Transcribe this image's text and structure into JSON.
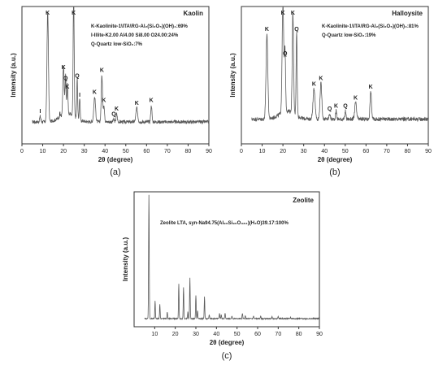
{
  "colors": {
    "trace": "#5a5a5a",
    "axis": "#333333"
  },
  "chart_data": [
    {
      "id": "a",
      "type": "line",
      "panel_label": "(a)",
      "title": "Kaolin",
      "xlabel": "2θ (degree)",
      "ylabel": "Intensity (a.u.)",
      "xlim": [
        0,
        90
      ],
      "xticks": [
        0,
        10,
        20,
        30,
        40,
        50,
        60,
        70,
        80,
        90
      ],
      "legend": [
        {
          "text": "K-Kaolinite-1\\ITA\\RG-Al₂(Si₂O₅)(OH)₄:69%"
        },
        {
          "text": "I-Illite-K2.00 Al4.00 Si8.00 O24.00:24%"
        },
        {
          "text": "Q-Quartz low-SiO₂:7%"
        }
      ],
      "baseline": 0.16,
      "noise": 0.012,
      "peaks": [
        [
          8.8,
          0.04,
          0.4,
          "I"
        ],
        [
          12.4,
          0.8,
          0.5,
          "K"
        ],
        [
          18.3,
          0.02,
          0.4,
          "I"
        ],
        [
          20.0,
          0.36,
          0.45,
          "K"
        ],
        [
          21.0,
          0.28,
          0.35,
          "Q"
        ],
        [
          21.9,
          0.22,
          0.35,
          "K"
        ],
        [
          24.9,
          0.92,
          0.35,
          "K"
        ],
        [
          26.6,
          0.3,
          0.3,
          "Q"
        ],
        [
          27.8,
          0.16,
          0.3,
          "I"
        ],
        [
          35.0,
          0.18,
          0.6,
          "K"
        ],
        [
          38.5,
          0.34,
          0.45,
          "K"
        ],
        [
          39.5,
          0.12,
          0.4,
          "K"
        ],
        [
          45.6,
          0.06,
          0.4,
          "K"
        ],
        [
          44.2,
          0.02,
          0.4,
          "Q"
        ],
        [
          55.3,
          0.1,
          0.6,
          "K"
        ],
        [
          62.3,
          0.12,
          0.4,
          "K"
        ]
      ]
    },
    {
      "id": "b",
      "type": "line",
      "panel_label": "(b)",
      "title": "Halloysite",
      "xlabel": "2θ (degree)",
      "ylabel": "Intensity (a.u.)",
      "xlim": [
        0,
        90
      ],
      "xticks": [
        0,
        10,
        20,
        30,
        40,
        50,
        60,
        70,
        80,
        90
      ],
      "legend": [
        {
          "text": "K-Kaolinite-1\\ITA\\RG-Al₂(Si₂O₅)(OH)₄:81%"
        },
        {
          "text": "Q-Quartz low-SiO₂:19%"
        }
      ],
      "baseline": 0.18,
      "noise": 0.014,
      "peaks": [
        [
          12.3,
          0.62,
          0.6,
          "K"
        ],
        [
          20.0,
          0.78,
          0.55,
          "K"
        ],
        [
          21.0,
          0.44,
          0.4,
          "Q"
        ],
        [
          24.8,
          0.74,
          0.45,
          "K"
        ],
        [
          26.6,
          0.62,
          0.35,
          "Q"
        ],
        [
          35.0,
          0.22,
          0.7,
          "K"
        ],
        [
          38.3,
          0.26,
          0.6,
          "K"
        ],
        [
          42.5,
          0.04,
          0.4,
          "Q"
        ],
        [
          45.6,
          0.06,
          0.4,
          "K"
        ],
        [
          50.1,
          0.06,
          0.35,
          "Q"
        ],
        [
          55.0,
          0.12,
          0.6,
          "K"
        ],
        [
          62.3,
          0.2,
          0.5,
          "K"
        ]
      ]
    },
    {
      "id": "c",
      "type": "line",
      "panel_label": "(c)",
      "title": "Zeolite",
      "xlabel": "2θ (degree)",
      "ylabel": "Intensity (a.u.)",
      "xlim": [
        0,
        90
      ],
      "xticks": [
        10,
        20,
        30,
        40,
        50,
        60,
        70,
        80,
        90
      ],
      "legend": [
        {
          "text": "Zeolite LTA, syn-Na94.75(Al₉₆Si₉₆O₃₈₄)(H₂O)39.17:100%"
        }
      ],
      "baseline": 0.06,
      "noise": 0.004,
      "peaks": [
        [
          7.2,
          0.92,
          0.22,
          ""
        ],
        [
          10.2,
          0.13,
          0.2,
          ""
        ],
        [
          12.5,
          0.11,
          0.2,
          ""
        ],
        [
          16.1,
          0.05,
          0.2,
          ""
        ],
        [
          21.7,
          0.26,
          0.2,
          ""
        ],
        [
          24.0,
          0.23,
          0.2,
          ""
        ],
        [
          26.1,
          0.05,
          0.2,
          ""
        ],
        [
          27.1,
          0.3,
          0.2,
          ""
        ],
        [
          30.0,
          0.17,
          0.2,
          ""
        ],
        [
          30.8,
          0.06,
          0.2,
          ""
        ],
        [
          34.2,
          0.16,
          0.2,
          ""
        ],
        [
          36.5,
          0.03,
          0.2,
          ""
        ],
        [
          41.5,
          0.04,
          0.2,
          ""
        ],
        [
          42.3,
          0.03,
          0.2,
          ""
        ],
        [
          44.2,
          0.04,
          0.2,
          ""
        ],
        [
          47.5,
          0.02,
          0.2,
          ""
        ],
        [
          52.6,
          0.04,
          0.2,
          ""
        ],
        [
          54.0,
          0.02,
          0.2,
          ""
        ],
        [
          58.0,
          0.02,
          0.2,
          ""
        ],
        [
          61.5,
          0.02,
          0.2,
          ""
        ],
        [
          67.0,
          0.02,
          0.2,
          ""
        ],
        [
          70.0,
          0.02,
          0.2,
          ""
        ],
        [
          76.0,
          0.01,
          0.2,
          ""
        ]
      ]
    }
  ]
}
